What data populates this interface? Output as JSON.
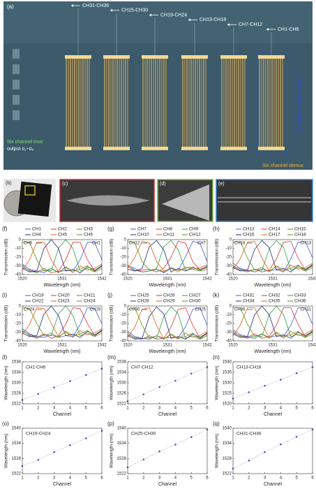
{
  "panel_a": {
    "label": "(a)",
    "groups": [
      "CH31-CH36",
      "CH25-CH30",
      "CH19-CH24",
      "CH13-CH18",
      "CH7-CH12",
      "CH1-CH6"
    ],
    "mux": "Six channel mux",
    "output": "output o₁~o₆",
    "transmitter": "Six channel transmitter",
    "demux": "Six channel demux"
  },
  "photos": {
    "b": "(b)",
    "c": "(c)",
    "d": "(d)",
    "e": "(e)"
  },
  "chart_data": [
    {
      "type": "line",
      "panel_label": "(f)",
      "xlabel": "Wavelength (nm)",
      "ylabel": "Transmission (dB)",
      "x": [
        1520,
        1522,
        1524,
        1526,
        1528,
        1530,
        1532,
        1534,
        1536,
        1538,
        1540,
        1542
      ],
      "xlim": [
        1520,
        1542
      ],
      "xticks": [
        1520,
        1531,
        1542
      ],
      "ylim": [
        -40,
        0
      ],
      "yticks": [
        0,
        -10,
        -20,
        -30,
        -40
      ],
      "left_note": "CH6",
      "right_note": "CH1",
      "series": [
        {
          "name": "CH1",
          "color": "#3b5bdb",
          "values": [
            -28,
            -34,
            -36,
            -38,
            -33,
            -37,
            -35,
            -36,
            -23,
            -3,
            -3,
            -23
          ]
        },
        {
          "name": "CH2",
          "color": "#e03131",
          "values": [
            -32,
            -35,
            -37,
            -33,
            -38,
            -36,
            -23,
            -3,
            -3,
            -23,
            -36,
            -31
          ]
        },
        {
          "name": "CH3",
          "color": "#2f9e44",
          "values": [
            -30,
            -36,
            -38,
            -35,
            -36,
            -10,
            0,
            -10,
            -36,
            -33,
            -37,
            -29
          ]
        },
        {
          "name": "CH4",
          "color": "#1c2b7a",
          "values": [
            -33,
            -37,
            -36,
            -10,
            0,
            -10,
            -36,
            -34,
            -38,
            -31,
            -35,
            -30
          ]
        },
        {
          "name": "CH5",
          "color": "#e8590c",
          "values": [
            -35,
            -23,
            -3,
            -3,
            -23,
            -37,
            -32,
            -38,
            -30,
            -35,
            -33,
            -28
          ]
        },
        {
          "name": "CH6",
          "color": "#5c940d",
          "values": [
            -3,
            -3,
            -23,
            -36,
            -33,
            -38,
            -31,
            -36,
            -34,
            -30,
            -37,
            -33
          ]
        }
      ]
    },
    {
      "type": "line",
      "panel_label": "(g)",
      "xlabel": "Wavelength (nm)",
      "ylabel": "Transmission (dB)",
      "x": [
        1520,
        1522,
        1524,
        1526,
        1528,
        1530,
        1532,
        1534,
        1536,
        1538,
        1540,
        1542
      ],
      "xlim": [
        1520,
        1542
      ],
      "xticks": [
        1520,
        1531,
        1542
      ],
      "ylim": [
        -40,
        0
      ],
      "yticks": [
        0,
        -10,
        -20,
        -30,
        -40
      ],
      "left_note": "CH12",
      "right_note": "CH7",
      "series": [
        {
          "name": "CH7",
          "color": "#3b5bdb",
          "values": [
            -30,
            -33,
            -37,
            -36,
            -34,
            -38,
            -33,
            -35,
            -20,
            -2,
            -4,
            -25
          ]
        },
        {
          "name": "CH8",
          "color": "#e03131",
          "values": [
            -31,
            -36,
            -35,
            -34,
            -37,
            -33,
            -20,
            -2,
            -4,
            -25,
            -35,
            -32
          ]
        },
        {
          "name": "CH9",
          "color": "#2f9e44",
          "values": [
            -29,
            -35,
            -37,
            -36,
            -33,
            -8,
            -1,
            -12,
            -35,
            -34,
            -36,
            -30
          ]
        },
        {
          "name": "CH10",
          "color": "#1c2b7a",
          "values": [
            -34,
            -36,
            -33,
            -8,
            -1,
            -12,
            -37,
            -33,
            -36,
            -32,
            -34,
            -31
          ]
        },
        {
          "name": "CH11",
          "color": "#e8590c",
          "values": [
            -33,
            -20,
            -2,
            -4,
            -25,
            -36,
            -33,
            -37,
            -31,
            -34,
            -32,
            -29
          ]
        },
        {
          "name": "CH12",
          "color": "#5c940d",
          "values": [
            -2,
            -4,
            -25,
            -35,
            -34,
            -37,
            -32,
            -35,
            -33,
            -31,
            -36,
            -34
          ]
        }
      ]
    },
    {
      "type": "line",
      "panel_label": "(h)",
      "xlabel": "Wavelength (nm)",
      "ylabel": "Transmission (dB)",
      "x": [
        1520,
        1522,
        1524,
        1526,
        1528,
        1530,
        1532,
        1534,
        1536,
        1538,
        1540,
        1542
      ],
      "xlim": [
        1520,
        1542
      ],
      "xticks": [
        1520,
        1531,
        1542
      ],
      "ylim": [
        -40,
        0
      ],
      "yticks": [
        0,
        -10,
        -20,
        -30,
        -40
      ],
      "left_note": "CH18",
      "right_note": "CH13",
      "series": [
        {
          "name": "CH13",
          "color": "#3b5bdb",
          "values": [
            -27,
            -33,
            -35,
            -37,
            -34,
            -36,
            -34,
            -37,
            -22,
            -3,
            -2,
            -21
          ]
        },
        {
          "name": "CH14",
          "color": "#e03131",
          "values": [
            -30,
            -34,
            -36,
            -34,
            -37,
            -35,
            -22,
            -3,
            -2,
            -21,
            -35,
            -30
          ]
        },
        {
          "name": "CH15",
          "color": "#2f9e44",
          "values": [
            -31,
            -35,
            -37,
            -34,
            -35,
            -11,
            -1,
            -9,
            -35,
            -32,
            -36,
            -28
          ]
        },
        {
          "name": "CH16",
          "color": "#1c2b7a",
          "values": [
            -32,
            -36,
            -35,
            -11,
            -1,
            -9,
            -35,
            -33,
            -37,
            -30,
            -34,
            -29
          ]
        },
        {
          "name": "CH17",
          "color": "#e8590c",
          "values": [
            -34,
            -22,
            -3,
            -2,
            -21,
            -36,
            -31,
            -37,
            -29,
            -34,
            -32,
            -27
          ]
        },
        {
          "name": "CH18",
          "color": "#5c940d",
          "values": [
            -3,
            -2,
            -21,
            -35,
            -32,
            -37,
            -30,
            -35,
            -33,
            -29,
            -36,
            -32
          ]
        }
      ]
    },
    {
      "type": "line",
      "panel_label": "(i)",
      "xlabel": "Wavelength (nm)",
      "ylabel": "Transmission (dB)",
      "x": [
        1520,
        1522,
        1524,
        1526,
        1528,
        1530,
        1532,
        1534,
        1536,
        1538,
        1540,
        1542
      ],
      "xlim": [
        1520,
        1542
      ],
      "xticks": [
        1520,
        1531,
        1542
      ],
      "ylim": [
        -40,
        0
      ],
      "yticks": [
        0,
        -10,
        -20,
        -30,
        -40
      ],
      "left_note": "CH24",
      "right_note": "CH19",
      "series": [
        {
          "name": "CH19",
          "color": "#3b5bdb",
          "values": [
            -26,
            -32,
            -35,
            -36,
            -33,
            -36,
            -34,
            -35,
            -21,
            -2,
            -3,
            -20
          ]
        },
        {
          "name": "CH20",
          "color": "#e03131",
          "values": [
            -29,
            -33,
            -36,
            -32,
            -37,
            -34,
            -21,
            -2,
            -3,
            -20,
            -34,
            -29
          ]
        },
        {
          "name": "CH21",
          "color": "#2f9e44",
          "values": [
            -28,
            -34,
            -37,
            -33,
            -34,
            -9,
            0,
            -11,
            -34,
            -31,
            -35,
            -27
          ]
        },
        {
          "name": "CH22",
          "color": "#1c2b7a",
          "values": [
            -31,
            -35,
            -34,
            -9,
            0,
            -11,
            -34,
            -32,
            -36,
            -29,
            -33,
            -28
          ]
        },
        {
          "name": "CH23",
          "color": "#e8590c",
          "values": [
            -33,
            -21,
            -2,
            -3,
            -20,
            -35,
            -30,
            -36,
            -28,
            -33,
            -31,
            -26
          ]
        },
        {
          "name": "CH24",
          "color": "#5c940d",
          "values": [
            -2,
            -3,
            -20,
            -34,
            -31,
            -36,
            -29,
            -34,
            -32,
            -28,
            -35,
            -31
          ]
        }
      ]
    },
    {
      "type": "line",
      "panel_label": "(j)",
      "xlabel": "Wavelength (nm)",
      "ylabel": "Transmission (dB)",
      "x": [
        1520,
        1522,
        1524,
        1526,
        1528,
        1530,
        1532,
        1534,
        1536,
        1538,
        1540,
        1542
      ],
      "xlim": [
        1520,
        1542
      ],
      "xticks": [
        1520,
        1531,
        1542
      ],
      "ylim": [
        -40,
        0
      ],
      "yticks": [
        0,
        -10,
        -20,
        -30,
        -40
      ],
      "left_note": "CH30",
      "right_note": "CH25",
      "series": [
        {
          "name": "CH25",
          "color": "#3b5bdb",
          "values": [
            -29,
            -35,
            -37,
            -38,
            -34,
            -37,
            -36,
            -36,
            -24,
            -4,
            -2,
            -22
          ]
        },
        {
          "name": "CH26",
          "color": "#e03131",
          "values": [
            -33,
            -36,
            -38,
            -34,
            -38,
            -37,
            -24,
            -4,
            -2,
            -22,
            -37,
            -32
          ]
        },
        {
          "name": "CH27",
          "color": "#2f9e44",
          "values": [
            -31,
            -37,
            -38,
            -36,
            -37,
            -12,
            -1,
            -9,
            -37,
            -34,
            -38,
            -30
          ]
        },
        {
          "name": "CH28",
          "color": "#1c2b7a",
          "values": [
            -34,
            -38,
            -37,
            -12,
            -1,
            -9,
            -37,
            -35,
            -38,
            -32,
            -36,
            -31
          ]
        },
        {
          "name": "CH29",
          "color": "#e8590c",
          "values": [
            -36,
            -24,
            -4,
            -2,
            -22,
            -38,
            -33,
            -38,
            -31,
            -36,
            -34,
            -29
          ]
        },
        {
          "name": "CH30",
          "color": "#5c940d",
          "values": [
            -4,
            -2,
            -22,
            -37,
            -34,
            -38,
            -32,
            -37,
            -35,
            -31,
            -38,
            -34
          ]
        }
      ]
    },
    {
      "type": "line",
      "panel_label": "(k)",
      "xlabel": "Wavelength (nm)",
      "ylabel": "Transmission (dB)",
      "x": [
        1520,
        1522,
        1524,
        1526,
        1528,
        1530,
        1532,
        1534,
        1536,
        1538,
        1540,
        1542
      ],
      "xlim": [
        1520,
        1542
      ],
      "xticks": [
        1520,
        1531,
        1542
      ],
      "ylim": [
        -40,
        0
      ],
      "yticks": [
        0,
        -10,
        -20,
        -30,
        -40
      ],
      "left_note": "CH36",
      "right_note": "CH31",
      "series": [
        {
          "name": "CH31",
          "color": "#3b5bdb",
          "values": [
            -27,
            -33,
            -35,
            -37,
            -32,
            -36,
            -34,
            -35,
            -22,
            -2,
            -2,
            -21
          ]
        },
        {
          "name": "CH32",
          "color": "#e03131",
          "values": [
            -31,
            -34,
            -36,
            -32,
            -37,
            -35,
            -22,
            -2,
            -2,
            -21,
            -35,
            -30
          ]
        },
        {
          "name": "CH33",
          "color": "#2f9e44",
          "values": [
            -29,
            -35,
            -37,
            -34,
            -35,
            -10,
            0,
            -10,
            -35,
            -32,
            -36,
            -28
          ]
        },
        {
          "name": "CH34",
          "color": "#1c2b7a",
          "values": [
            -32,
            -36,
            -35,
            -10,
            0,
            -10,
            -35,
            -33,
            -37,
            -30,
            -34,
            -29
          ]
        },
        {
          "name": "CH35",
          "color": "#e8590c",
          "values": [
            -34,
            -22,
            -2,
            -2,
            -21,
            -36,
            -31,
            -37,
            -29,
            -34,
            -32,
            -27
          ]
        },
        {
          "name": "CH36",
          "color": "#5c940d",
          "values": [
            -2,
            -2,
            -21,
            -35,
            -32,
            -37,
            -30,
            -35,
            -33,
            -29,
            -36,
            -32
          ]
        }
      ]
    },
    {
      "type": "scatter",
      "panel_label": "(l)",
      "title": "CH1-CH6",
      "xlabel": "Channel",
      "ylabel": "Wavelength (nm)",
      "x": [
        1,
        2,
        3,
        4,
        5,
        6
      ],
      "xlim": [
        1,
        6
      ],
      "xticks": [
        1,
        2,
        3,
        4,
        5,
        6
      ],
      "ylim": [
        1522,
        1538
      ],
      "yticks": [
        1522,
        1526,
        1530,
        1534,
        1538
      ],
      "color": "#3b5bdb",
      "values": [
        1523.5,
        1525.8,
        1528.2,
        1530.6,
        1533,
        1535.4
      ]
    },
    {
      "type": "scatter",
      "panel_label": "(m)",
      "title": "CH7-CH12",
      "xlabel": "Channel",
      "ylabel": "Wavelength (nm)",
      "x": [
        1,
        2,
        3,
        4,
        5,
        6
      ],
      "xlim": [
        1,
        6
      ],
      "xticks": [
        1,
        2,
        3,
        4,
        5,
        6
      ],
      "ylim": [
        1522,
        1538
      ],
      "yticks": [
        1522,
        1526,
        1530,
        1534,
        1538
      ],
      "color": "#3b5bdb",
      "values": [
        1523,
        1525.6,
        1528.4,
        1530.8,
        1533.5,
        1536
      ]
    },
    {
      "type": "scatter",
      "panel_label": "(n)",
      "title": "CH13-CH18",
      "xlabel": "Channel",
      "ylabel": "Wavelength (nm)",
      "x": [
        1,
        2,
        3,
        4,
        5,
        6
      ],
      "xlim": [
        1,
        6
      ],
      "xticks": [
        1,
        2,
        3,
        4,
        5,
        6
      ],
      "ylim": [
        1520,
        1540
      ],
      "yticks": [
        1520,
        1525,
        1530,
        1535,
        1540
      ],
      "color": "#3b5bdb",
      "values": [
        1522.5,
        1525.5,
        1528.6,
        1531.5,
        1534.6,
        1537.5
      ]
    },
    {
      "type": "scatter",
      "panel_label": "(o)",
      "title": "CH19-CH24",
      "xlabel": "Channel",
      "ylabel": "Wavelength (nm)",
      "x": [
        1,
        2,
        3,
        4,
        5,
        6
      ],
      "xlim": [
        1,
        6
      ],
      "xticks": [
        1,
        2,
        3,
        4,
        5,
        6
      ],
      "ylim": [
        1522,
        1540
      ],
      "yticks": [
        1522,
        1528,
        1534,
        1540
      ],
      "color": "#3b5bdb",
      "values": [
        1525,
        1527.5,
        1530.5,
        1533.3,
        1536,
        1539
      ]
    },
    {
      "type": "scatter",
      "panel_label": "(p)",
      "title": "CH25-CH30",
      "xlabel": "Channel",
      "ylabel": "Wavelength (nm)",
      "x": [
        1,
        2,
        3,
        4,
        5,
        6
      ],
      "xlim": [
        1,
        6
      ],
      "xticks": [
        1,
        2,
        3,
        4,
        5,
        6
      ],
      "ylim": [
        1522,
        1540
      ],
      "yticks": [
        1522,
        1528,
        1534,
        1540
      ],
      "color": "#3b5bdb",
      "values": [
        1524.5,
        1527.6,
        1530.8,
        1533.5,
        1536.5,
        1539.5
      ]
    },
    {
      "type": "scatter",
      "panel_label": "(q)",
      "title": "CH31-CH36",
      "xlabel": "Channel",
      "ylabel": "Wavelength (nm)",
      "x": [
        1,
        2,
        3,
        4,
        5,
        6
      ],
      "xlim": [
        1,
        6
      ],
      "xticks": [
        1,
        2,
        3,
        4,
        5,
        6
      ],
      "ylim": [
        1522,
        1540
      ],
      "yticks": [
        1522,
        1528,
        1534,
        1540
      ],
      "color": "#3b5bdb",
      "values": [
        1524,
        1527.2,
        1530.5,
        1533.6,
        1536.6,
        1539.5
      ]
    }
  ]
}
